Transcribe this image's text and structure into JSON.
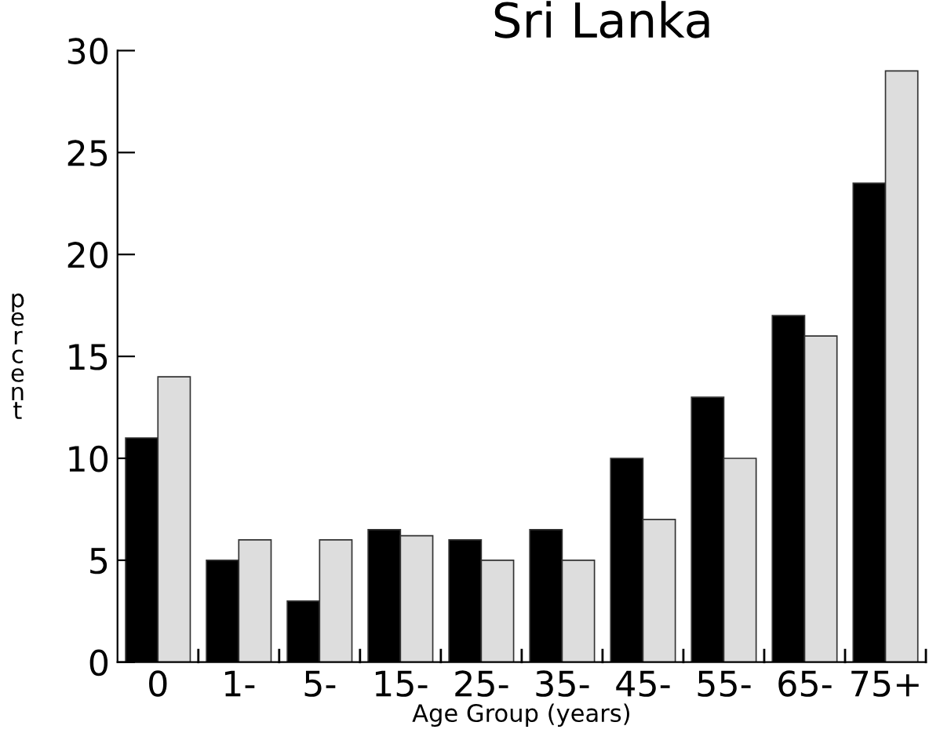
{
  "chart_data": {
    "type": "bar",
    "title": "Sri Lanka",
    "xlabel": "Age Group (years)",
    "ylabel": "percent",
    "categories": [
      "0",
      "1-",
      "5-",
      "15-",
      "25-",
      "35-",
      "45-",
      "55-",
      "65-",
      "75+"
    ],
    "series": [
      {
        "color": "#000000",
        "values": [
          11,
          5,
          3,
          6.5,
          6,
          6.5,
          10,
          13,
          17,
          23.5
        ]
      },
      {
        "color": "#dddddd",
        "values": [
          14,
          6,
          6,
          6.2,
          5,
          5,
          7,
          10,
          16,
          29
        ]
      }
    ],
    "ylim": [
      0,
      30
    ],
    "yticks": [
      0,
      5,
      10,
      15,
      20,
      25,
      30
    ],
    "grid": false,
    "legend": false
  }
}
